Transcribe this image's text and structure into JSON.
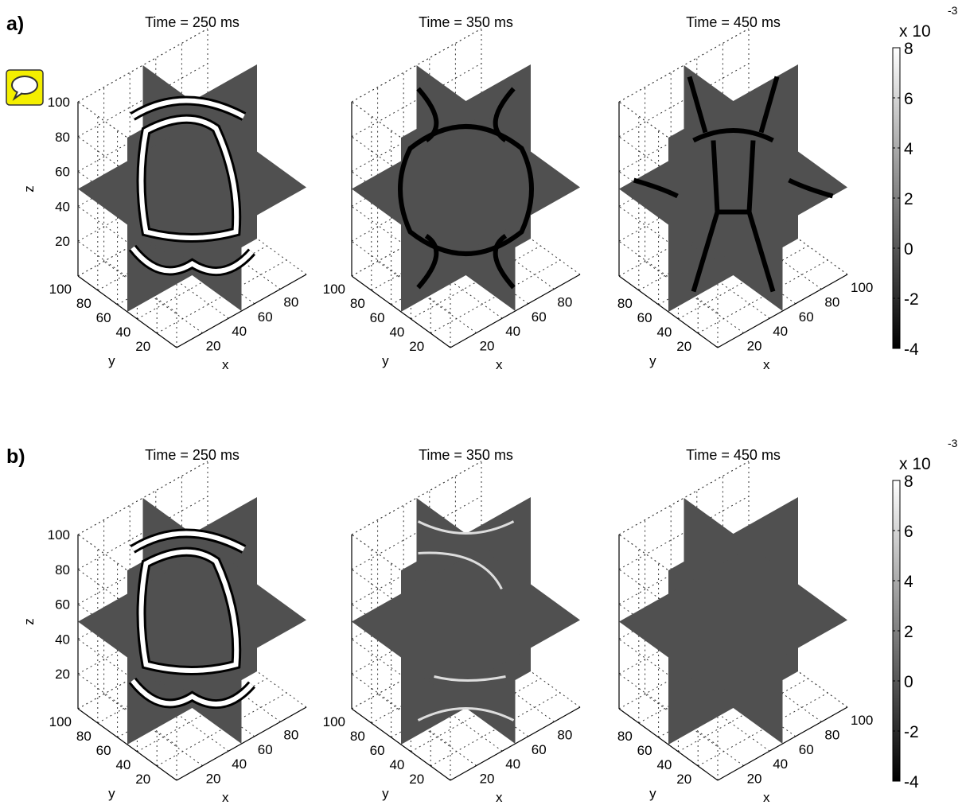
{
  "panels": [
    {
      "label": "a)",
      "plots": [
        {
          "title": "Time = 250 ms",
          "zlabel": "z",
          "ylabel": "y",
          "xlabel": "x",
          "zticks": [
            20,
            40,
            60,
            80,
            100
          ],
          "yticks": [
            20,
            40,
            60,
            80,
            100
          ],
          "xticks": [
            20,
            40,
            60,
            80
          ]
        },
        {
          "title": "Time = 350 ms",
          "ylabel": "y",
          "xlabel": "x",
          "yticks": [
            20,
            40,
            60,
            80,
            100
          ],
          "xticks": [
            20,
            40,
            60,
            80
          ]
        },
        {
          "title": "Time = 450 ms",
          "ylabel": "y",
          "xlabel": "x",
          "yticks": [
            20,
            40,
            60,
            80
          ],
          "xticks": [
            20,
            40,
            60,
            80,
            100
          ]
        }
      ],
      "colorbar": {
        "clim": [
          -4,
          8
        ],
        "ticks": [
          -4,
          -2,
          0,
          2,
          4,
          6,
          8
        ],
        "multiplier": "x 10",
        "exponent": "-3"
      }
    },
    {
      "label": "b)",
      "plots": [
        {
          "title": "Time = 250 ms",
          "zlabel": "z",
          "ylabel": "y",
          "xlabel": "x",
          "zticks": [
            20,
            40,
            60,
            80,
            100
          ],
          "yticks": [
            20,
            40,
            60,
            80,
            100
          ],
          "xticks": [
            20,
            40,
            60,
            80
          ]
        },
        {
          "title": "Time = 350 ms",
          "ylabel": "y",
          "xlabel": "x",
          "yticks": [
            20,
            40,
            60,
            80,
            100
          ],
          "xticks": [
            20,
            40,
            60,
            80
          ]
        },
        {
          "title": "Time = 450 ms",
          "ylabel": "y",
          "xlabel": "x",
          "yticks": [
            20,
            40,
            60,
            80
          ],
          "xticks": [
            20,
            40,
            60,
            80,
            100
          ]
        }
      ],
      "colorbar": {
        "clim": [
          -4,
          8
        ],
        "ticks": [
          -4,
          -2,
          0,
          2,
          4,
          6,
          8
        ],
        "multiplier": "x 10",
        "exponent": "-3"
      }
    }
  ]
}
